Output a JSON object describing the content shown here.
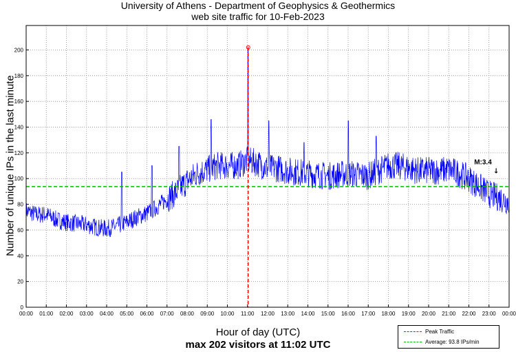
{
  "chart_data": {
    "type": "line",
    "title": "University of Athens - Department of Geophysics & Geothermics",
    "subtitle": "web site traffic for 10-Feb-2023",
    "xlabel": "Hour of day (UTC)",
    "xlabel_sub": "max 202 visitors at 11:02 UTC",
    "ylabel": "Number of unique IPs in the last minute",
    "xlim": [
      0,
      24
    ],
    "ylim": [
      0,
      219
    ],
    "grid": true,
    "xticks": [
      "00:00",
      "01:00",
      "02:00",
      "03:00",
      "04:00",
      "05:00",
      "06:00",
      "07:00",
      "08:00",
      "09:00",
      "10:00",
      "11:00",
      "12:00",
      "13:00",
      "14:00",
      "15:00",
      "16:00",
      "17:00",
      "18:00",
      "19:00",
      "20:00",
      "21:00",
      "22:00",
      "23:00",
      "00:00"
    ],
    "yticks": [
      0,
      20,
      40,
      60,
      80,
      100,
      120,
      140,
      160,
      180,
      200
    ],
    "series": [
      {
        "name": "Traffic",
        "color": "#0000ff",
        "x_step_hours": 0.5,
        "values": [
          75,
          72,
          72,
          68,
          66,
          65,
          64,
          62,
          61,
          63,
          66,
          70,
          73,
          78,
          84,
          90,
          98,
          104,
          107,
          110,
          110,
          110,
          114,
          112,
          108,
          108,
          106,
          105,
          104,
          103,
          102,
          103,
          104,
          103,
          102,
          106,
          110,
          110,
          108,
          106,
          106,
          106,
          107,
          104,
          100,
          94,
          88,
          85,
          82
        ],
        "spikes": [
          [
            4.75,
            105
          ],
          [
            6.25,
            110
          ],
          [
            7.6,
            125
          ],
          [
            9.2,
            146
          ],
          [
            11.03,
            202
          ],
          [
            12.05,
            145
          ],
          [
            13.8,
            128
          ],
          [
            16.0,
            145
          ],
          [
            17.4,
            133
          ]
        ]
      }
    ],
    "peak": {
      "hour": 11.033,
      "value": 202,
      "color": "#ff0000"
    },
    "average": {
      "value": 93.8,
      "color": "#00bb00"
    },
    "annotation": {
      "text": "M:3.4",
      "hour": 22.7,
      "value": 111
    },
    "legend": {
      "placement": "bottom-right",
      "entries": [
        "Peak Traffic",
        "Average: 93.8 IPs/min"
      ]
    }
  }
}
